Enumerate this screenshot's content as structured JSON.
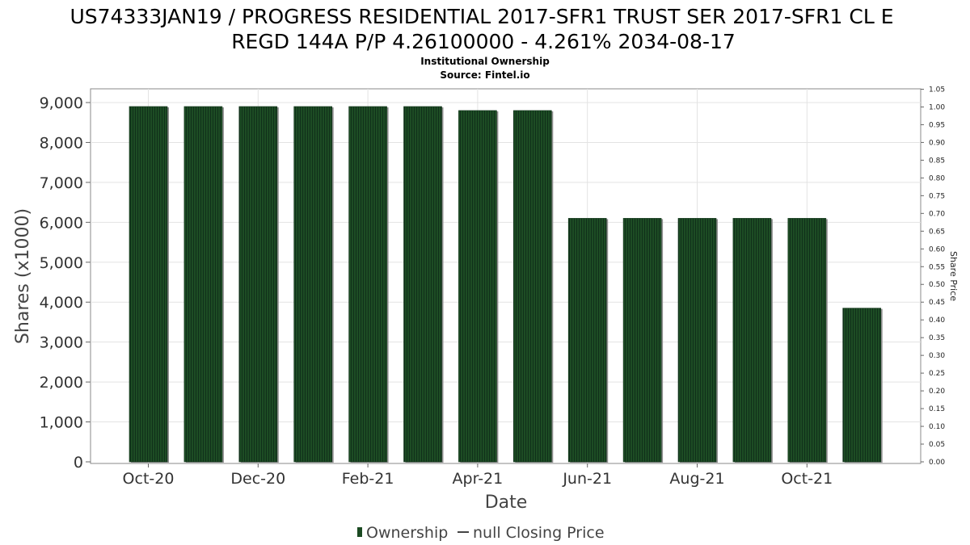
{
  "chart_data": {
    "type": "bar",
    "title_lines": [
      "US74333JAN19 / PROGRESS RESIDENTIAL 2017-SFR1 TRUST SER 2017-SFR1 CL E",
      "REGD 144A P/P 4.26100000 - 4.261% 2034-08-17"
    ],
    "subtitle_lines": [
      "Institutional Ownership",
      "Source: Fintel.io"
    ],
    "xlabel": "Date",
    "ylabel": "Shares (x1000)",
    "y2label": "Share Price",
    "ylim": [
      0,
      9400
    ],
    "yticks": [
      0,
      1000,
      2000,
      3000,
      4000,
      5000,
      6000,
      7000,
      8000,
      9000
    ],
    "ytick_labels": [
      "0",
      "1,000",
      "2,000",
      "3,000",
      "4,000",
      "5,000",
      "6,000",
      "7,000",
      "8,000",
      "9,000"
    ],
    "y2lim": [
      0,
      1.05
    ],
    "y2ticks": [
      "0.00",
      "0.05",
      "0.10",
      "0.15",
      "0.20",
      "0.25",
      "0.30",
      "0.35",
      "0.40",
      "0.45",
      "0.50",
      "0.55",
      "0.60",
      "0.65",
      "0.70",
      "0.75",
      "0.80",
      "0.85",
      "0.90",
      "0.95",
      "1.00",
      "1.05"
    ],
    "x_tick_labels": [
      "Oct-20",
      "Dec-20",
      "Feb-21",
      "Apr-21",
      "Jun-21",
      "Aug-21",
      "Oct-21"
    ],
    "bars": [
      {
        "date": "2020-10",
        "value": 8900
      },
      {
        "date": "2020-11",
        "value": 8900
      },
      {
        "date": "2020-12",
        "value": 8900
      },
      {
        "date": "2021-01",
        "value": 8900
      },
      {
        "date": "2021-02",
        "value": 8900
      },
      {
        "date": "2021-03",
        "value": 8900
      },
      {
        "date": "2021-04",
        "value": 8800
      },
      {
        "date": "2021-05",
        "value": 8800
      },
      {
        "date": "2021-06",
        "value": 6100
      },
      {
        "date": "2021-07",
        "value": 6100
      },
      {
        "date": "2021-08",
        "value": 6100
      },
      {
        "date": "2021-09",
        "value": 6100
      },
      {
        "date": "2021-10",
        "value": 6100
      },
      {
        "date": "2021-11",
        "value": 3850
      }
    ],
    "series": [
      {
        "name": "Ownership",
        "color": "#1b4a22"
      },
      {
        "name": "null Closing Price",
        "color": "#444444"
      }
    ],
    "grid": true,
    "legend_position": "bottom-center"
  }
}
